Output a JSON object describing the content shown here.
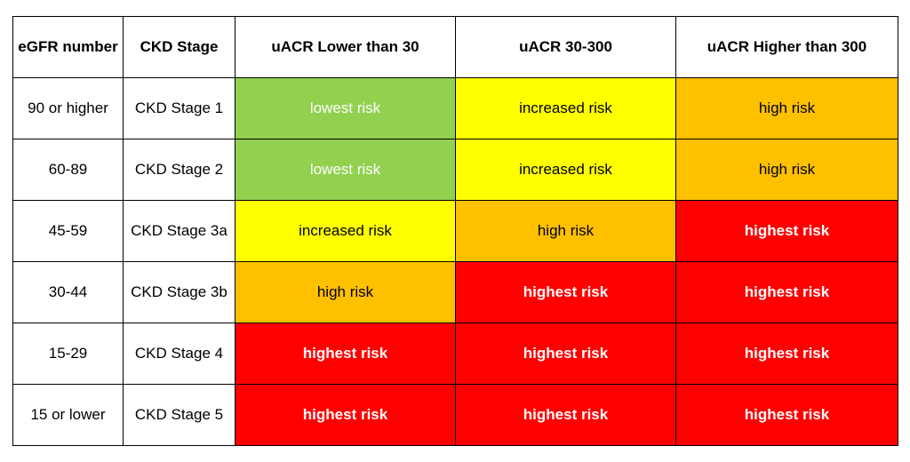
{
  "table": {
    "headers": [
      "eGFR number",
      "CKD Stage",
      "uACR Lower than 30",
      "uACR 30-300",
      "uACR Higher than 300"
    ],
    "rows": [
      {
        "egfr": "90 or higher",
        "stage": "CKD Stage 1",
        "risks": [
          "lowest risk",
          "increased risk",
          "high risk"
        ]
      },
      {
        "egfr": "60-89",
        "stage": "CKD Stage 2",
        "risks": [
          "lowest risk",
          "increased risk",
          "high risk"
        ]
      },
      {
        "egfr": "45-59",
        "stage": "CKD Stage 3a",
        "risks": [
          "increased risk",
          "high risk",
          "highest risk"
        ]
      },
      {
        "egfr": "30-44",
        "stage": "CKD Stage 3b",
        "risks": [
          "high risk",
          "highest risk",
          "highest risk"
        ]
      },
      {
        "egfr": "15-29",
        "stage": "CKD Stage 4",
        "risks": [
          "highest risk",
          "highest risk",
          "highest risk"
        ]
      },
      {
        "egfr": "15 or lower",
        "stage": "CKD Stage 5",
        "risks": [
          "highest risk",
          "highest risk",
          "highest risk"
        ]
      }
    ]
  },
  "risk_colors": {
    "lowest risk": "#92d050",
    "increased risk": "#ffff00",
    "high risk": "#ffc000",
    "highest risk": "#ff0000"
  }
}
